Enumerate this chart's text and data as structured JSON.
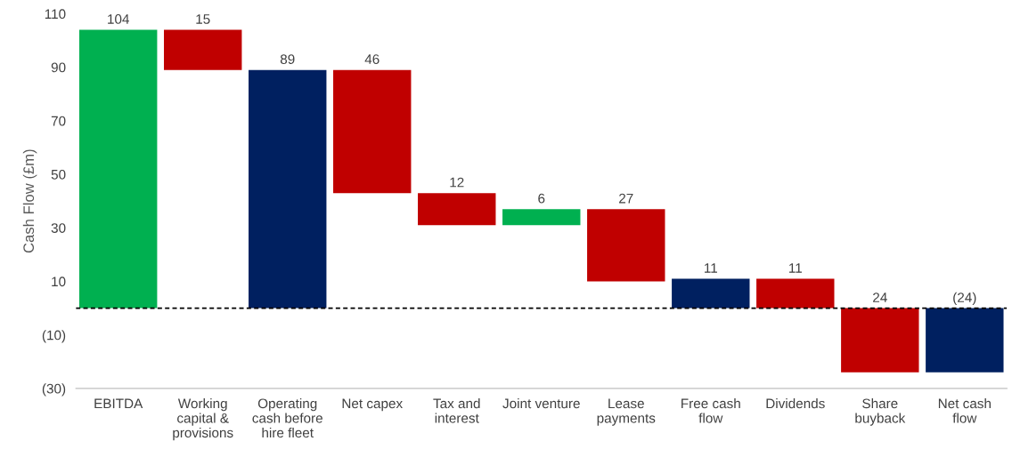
{
  "chart_data": {
    "type": "bar",
    "ylabel": "Cash Flow (£m)",
    "categories": [
      "EBITDA",
      "Working\ncapital &\nprovisions",
      "Operating\ncash before\nhire fleet",
      "Net capex",
      "Tax and\ninterest",
      "Joint venture",
      "Lease\npayments",
      "Free cash\nflow",
      "Dividends",
      "Share\nbuyback",
      "Net cash\nflow"
    ],
    "values": [
      104,
      -15,
      89,
      -46,
      -12,
      6,
      -27,
      11,
      -11,
      -24,
      -24
    ],
    "base": [
      0,
      104,
      0,
      89,
      43,
      31,
      37,
      0,
      11,
      0,
      0
    ],
    "colors": [
      "#00b050",
      "#c00000",
      "#002060",
      "#c00000",
      "#c00000",
      "#00b050",
      "#c00000",
      "#002060",
      "#c00000",
      "#c00000",
      "#002060"
    ],
    "value_labels": [
      "104",
      "15",
      "89",
      "46",
      "12",
      "6",
      "27",
      "11",
      "11",
      "24",
      "(24)"
    ],
    "ylim": [
      -30,
      110
    ],
    "yticks": [
      {
        "value": -30,
        "label": "(30)"
      },
      {
        "value": -10,
        "label": "(10)"
      },
      10,
      30,
      50,
      70,
      90,
      110
    ],
    "ref_lines": [
      {
        "axis": "y",
        "value": 0,
        "label": null,
        "color": "#000000",
        "line_style": "dashed"
      }
    ],
    "grid": false,
    "legend": false
  }
}
